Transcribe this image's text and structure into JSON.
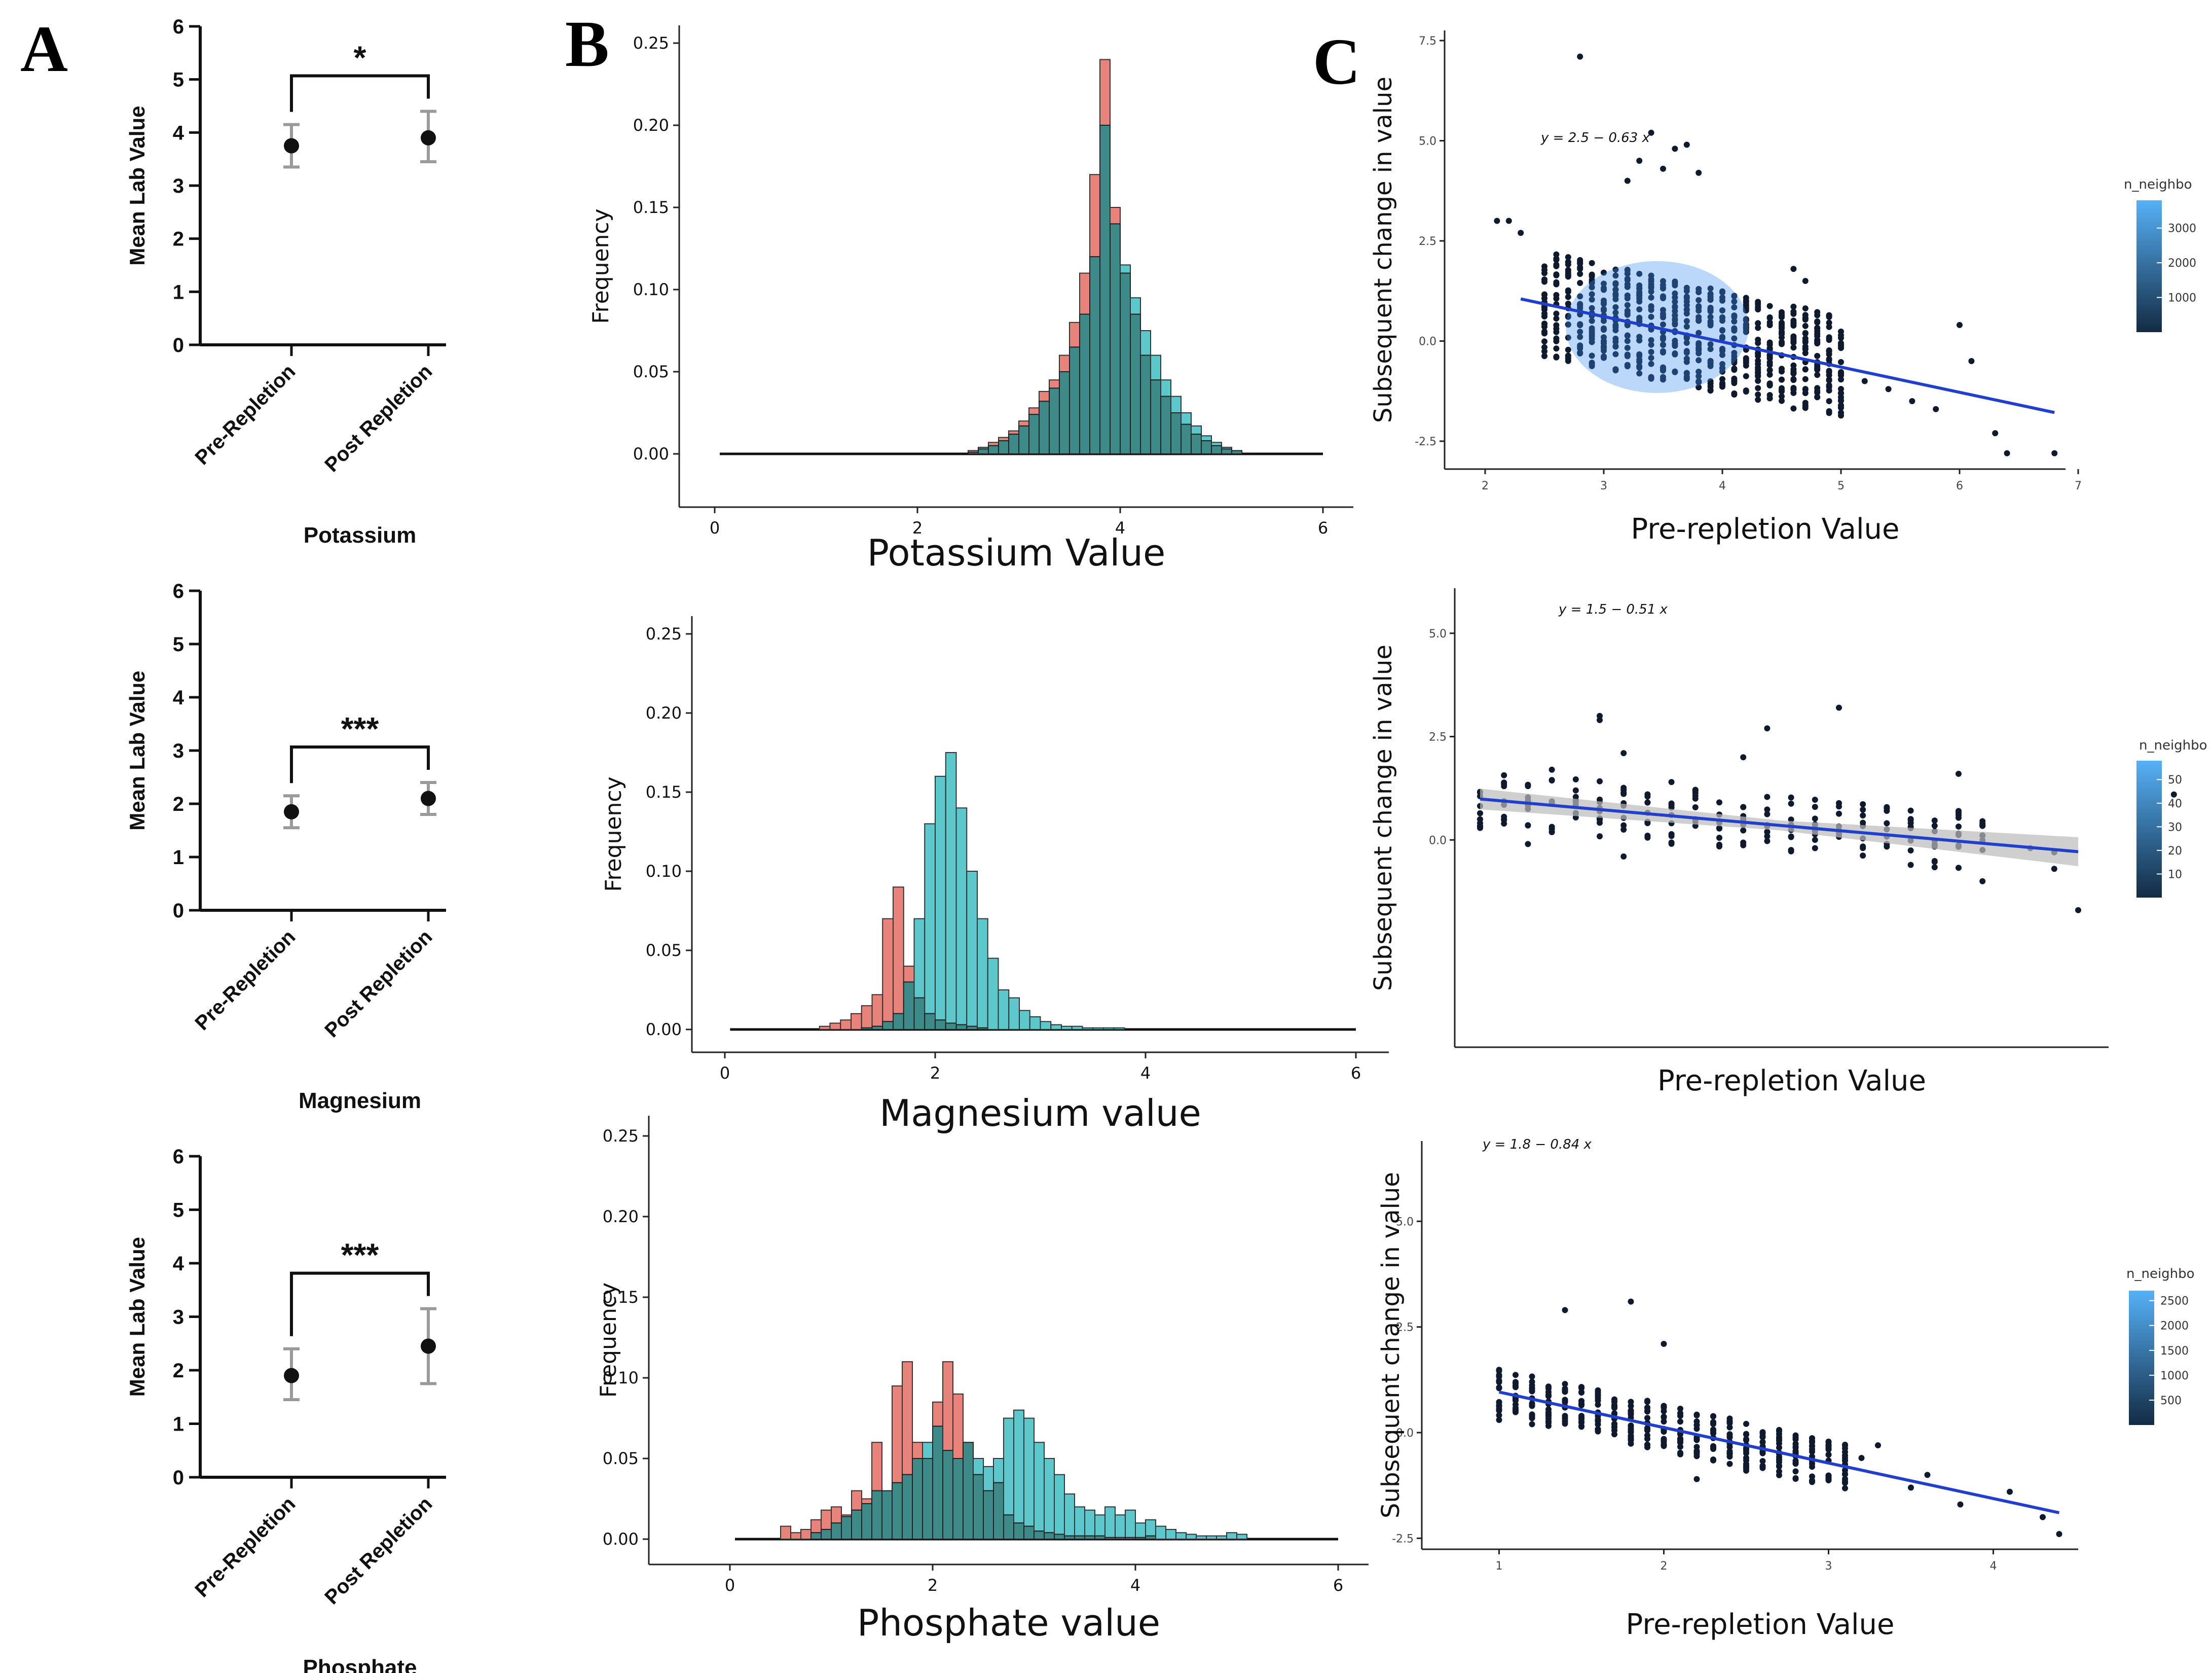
{
  "panel_labels": {
    "a": "A",
    "b": "B",
    "c": "C"
  },
  "colors": {
    "pre": "#E8837B",
    "post": "#5CC8CB",
    "overlap": "#3E8A88",
    "trend": "#1F3FCC",
    "ci": "#BBBBBB",
    "point": "#111111"
  },
  "chart_data": [
    {
      "id": "A1",
      "type": "scatter",
      "title": "Potassium",
      "ylabel": "Mean Lab Value",
      "ylim": [
        0,
        6
      ],
      "yticks": [
        0,
        1,
        2,
        3,
        4,
        5,
        6
      ],
      "categories": [
        "Pre-Repletion",
        "Post Repletion"
      ],
      "values": [
        3.75,
        3.9
      ],
      "err_low": [
        3.35,
        3.45
      ],
      "err_high": [
        4.15,
        4.4
      ],
      "significance": "*"
    },
    {
      "id": "A2",
      "type": "scatter",
      "title": "Magnesium",
      "ylabel": "Mean Lab Value",
      "ylim": [
        0,
        6
      ],
      "yticks": [
        0,
        1,
        2,
        3,
        4,
        5,
        6
      ],
      "categories": [
        "Pre-Repletion",
        "Post Repletion"
      ],
      "values": [
        1.85,
        2.1
      ],
      "err_low": [
        1.55,
        1.8
      ],
      "err_high": [
        2.15,
        2.4
      ],
      "significance": "***"
    },
    {
      "id": "A3",
      "type": "scatter",
      "title": "Phosphate",
      "ylabel": "Mean Lab Value",
      "ylim": [
        0,
        6
      ],
      "yticks": [
        0,
        1,
        2,
        3,
        4,
        5,
        6
      ],
      "categories": [
        "Pre-Repletion",
        "Post Repletion"
      ],
      "values": [
        1.9,
        2.45
      ],
      "err_low": [
        1.45,
        1.75
      ],
      "err_high": [
        2.4,
        3.15
      ],
      "significance": "***"
    },
    {
      "id": "B1",
      "type": "bar",
      "title": "Potassium Value",
      "ylabel": "Frequency",
      "xlim": [
        0,
        6
      ],
      "ylim": [
        0,
        0.25
      ],
      "xticks": [
        0,
        2,
        4,
        6
      ],
      "yticks": [
        "0.00",
        "0.05",
        "0.10",
        "0.15",
        "0.20",
        "0.25"
      ],
      "bin_width": 0.1,
      "series": [
        {
          "name": "pre",
          "start": 2.5,
          "values": [
            0.002,
            0.004,
            0.007,
            0.01,
            0.014,
            0.02,
            0.028,
            0.038,
            0.045,
            0.06,
            0.08,
            0.11,
            0.17,
            0.24,
            0.15,
            0.11,
            0.085,
            0.06,
            0.045,
            0.035,
            0.025,
            0.018,
            0.012,
            0.008,
            0.005,
            0.003,
            0.002
          ]
        },
        {
          "name": "post",
          "start": 2.5,
          "values": [
            0.001,
            0.003,
            0.005,
            0.008,
            0.012,
            0.017,
            0.024,
            0.032,
            0.04,
            0.05,
            0.065,
            0.085,
            0.12,
            0.2,
            0.14,
            0.115,
            0.095,
            0.075,
            0.06,
            0.045,
            0.035,
            0.025,
            0.017,
            0.011,
            0.007,
            0.004,
            0.002
          ]
        }
      ]
    },
    {
      "id": "B2",
      "type": "bar",
      "title": "Magnesium value",
      "ylabel": "Frequency",
      "xlim": [
        0,
        6
      ],
      "ylim": [
        0,
        0.25
      ],
      "xticks": [
        0,
        2,
        4,
        6
      ],
      "yticks": [
        "0.00",
        "0.05",
        "0.10",
        "0.15",
        "0.20",
        "0.25"
      ],
      "bin_width": 0.1,
      "series": [
        {
          "name": "pre",
          "start": 0.9,
          "values": [
            0.002,
            0.004,
            0.006,
            0.01,
            0.015,
            0.022,
            0.07,
            0.09,
            0.04,
            0.02,
            0.01,
            0.006,
            0.004,
            0.003,
            0.002,
            0.001
          ]
        },
        {
          "name": "post",
          "start": 1.3,
          "values": [
            0.001,
            0.002,
            0.005,
            0.01,
            0.03,
            0.07,
            0.13,
            0.16,
            0.175,
            0.14,
            0.1,
            0.07,
            0.045,
            0.025,
            0.02,
            0.012,
            0.008,
            0.005,
            0.003,
            0.002,
            0.002,
            0.001,
            0.001,
            0.001,
            0.001
          ]
        }
      ]
    },
    {
      "id": "B3",
      "type": "bar",
      "title": "Phosphate value",
      "ylabel": "Frequency",
      "xlim": [
        0,
        6
      ],
      "ylim": [
        0,
        0.25
      ],
      "xticks": [
        0,
        2,
        4,
        6
      ],
      "yticks": [
        "0.00",
        "0.05",
        "0.10",
        "0.15",
        "0.20",
        "0.25"
      ],
      "bin_width": 0.1,
      "series": [
        {
          "name": "pre",
          "start": 0.5,
          "values": [
            0.008,
            0.004,
            0.006,
            0.012,
            0.018,
            0.02,
            0.015,
            0.03,
            0.025,
            0.06,
            0.03,
            0.095,
            0.11,
            0.06,
            0.05,
            0.085,
            0.11,
            0.09,
            0.06,
            0.04,
            0.03,
            0.035,
            0.015,
            0.01,
            0.008,
            0.005,
            0.004,
            0.003,
            0.002,
            0.002,
            0.002,
            0.002,
            0.001,
            0.001,
            0.001,
            0.001,
            0.002
          ]
        },
        {
          "name": "post",
          "start": 0.8,
          "values": [
            0.004,
            0.006,
            0.01,
            0.014,
            0.018,
            0.022,
            0.03,
            0.03,
            0.035,
            0.04,
            0.05,
            0.06,
            0.07,
            0.055,
            0.05,
            0.06,
            0.05,
            0.045,
            0.05,
            0.075,
            0.08,
            0.075,
            0.06,
            0.05,
            0.04,
            0.028,
            0.02,
            0.018,
            0.015,
            0.02,
            0.015,
            0.018,
            0.01,
            0.012,
            0.008,
            0.006,
            0.004,
            0.003,
            0.002,
            0.002,
            0.002,
            0.004,
            0.003
          ]
        }
      ]
    },
    {
      "id": "C1",
      "type": "scatter",
      "xlabel": "Pre-repletion Value",
      "ylabel": "Subsequent change in value",
      "xlim": [
        2,
        7
      ],
      "ylim": [
        -2.5,
        7.5
      ],
      "xticks": [
        2,
        3,
        4,
        5,
        6,
        7
      ],
      "yticks": [
        "-2.5",
        "0.0",
        "2.5",
        "5.0",
        "7.5"
      ],
      "ytick_vals": [
        -2.5,
        0,
        2.5,
        5,
        7.5
      ],
      "equation": "y = 2.5 − 0.63 x",
      "intercept": 2.5,
      "slope": -0.63,
      "fit_x": [
        2.3,
        6.8
      ],
      "ci": false,
      "legend": {
        "title": "n_neighbo",
        "ticks": [
          "1000",
          "2000",
          "3000"
        ],
        "tick_vals": [
          1000,
          2000,
          3000
        ],
        "max": 3800
      },
      "outliers": [
        [
          2.1,
          3.0
        ],
        [
          2.2,
          3.0
        ],
        [
          2.3,
          2.7
        ],
        [
          2.8,
          7.1
        ],
        [
          3.2,
          4.0
        ],
        [
          3.3,
          4.5
        ],
        [
          3.4,
          5.2
        ],
        [
          3.5,
          4.3
        ],
        [
          3.6,
          4.8
        ],
        [
          3.7,
          4.9
        ],
        [
          3.8,
          4.2
        ],
        [
          4.6,
          1.8
        ],
        [
          4.7,
          1.5
        ],
        [
          5.2,
          -1.0
        ],
        [
          5.4,
          -1.2
        ],
        [
          5.6,
          -1.5
        ],
        [
          5.8,
          -1.7
        ],
        [
          6.0,
          0.4
        ],
        [
          6.1,
          -0.5
        ],
        [
          6.3,
          -2.3
        ],
        [
          6.4,
          -2.8
        ],
        [
          6.8,
          -2.8
        ]
      ]
    },
    {
      "id": "C2",
      "type": "scatter",
      "xlabel": "Pre-repletion Value",
      "ylabel": "Subsequent change in value",
      "xlim": [
        1,
        3.5
      ],
      "ylim": [
        -2.5,
        7.5
      ],
      "xticks": [],
      "yticks": [
        "0.0",
        "2.5",
        "5.0"
      ],
      "ytick_vals": [
        0,
        2.5,
        5
      ],
      "equation": "y = 1.5 − 0.51 x",
      "intercept": 1.5,
      "slope": -0.51,
      "fit_x": [
        1.0,
        3.5
      ],
      "ci": true,
      "legend": {
        "title": "n_neighbo",
        "ticks": [
          "10",
          "20",
          "30",
          "40",
          "50"
        ],
        "tick_vals": [
          10,
          20,
          30,
          40,
          50
        ],
        "max": 58
      },
      "outliers": [
        [
          1.0,
          0.5
        ],
        [
          1.1,
          1.3
        ],
        [
          1.3,
          1.7
        ],
        [
          1.5,
          2.9
        ],
        [
          1.5,
          3.0
        ],
        [
          1.6,
          2.1
        ],
        [
          1.8,
          1.4
        ],
        [
          1.9,
          1.2
        ],
        [
          2.1,
          2.0
        ],
        [
          2.2,
          2.7
        ],
        [
          2.5,
          3.2
        ],
        [
          3.0,
          0.7
        ],
        [
          3.1,
          -1.0
        ],
        [
          3.3,
          -0.2
        ],
        [
          3.4,
          -0.7
        ],
        [
          3.5,
          -1.7
        ],
        [
          3.4,
          -0.3
        ],
        [
          3.0,
          1.6
        ],
        [
          1.2,
          -0.1
        ],
        [
          1.6,
          -0.4
        ],
        [
          3.9,
          1.1
        ]
      ]
    },
    {
      "id": "C3",
      "type": "scatter",
      "xlabel": "Pre-repletion Value",
      "ylabel": "Subsequent change in value",
      "xlim": [
        0.9,
        4.5
      ],
      "ylim": [
        -2.7,
        7.5
      ],
      "xticks": [
        1,
        2,
        3,
        4
      ],
      "yticks": [
        "-2.5",
        "0.0",
        "2.5",
        "5.0"
      ],
      "ytick_vals": [
        -2.5,
        0,
        2.5,
        5
      ],
      "equation": "y = 1.8 − 0.84 x",
      "intercept": 1.8,
      "slope": -0.84,
      "fit_x": [
        1.0,
        4.4
      ],
      "ci": false,
      "legend": {
        "title": "n_neighbo",
        "ticks": [
          "500",
          "1000",
          "1500",
          "2000",
          "2500"
        ],
        "tick_vals": [
          500,
          1000,
          1500,
          2000,
          2500
        ],
        "max": 2700
      },
      "outliers": [
        [
          1.8,
          3.1
        ],
        [
          2.0,
          2.1
        ],
        [
          1.4,
          2.9
        ],
        [
          3.2,
          -0.6
        ],
        [
          3.3,
          -0.3
        ],
        [
          3.5,
          -1.3
        ],
        [
          3.6,
          -1.0
        ],
        [
          3.8,
          -1.7
        ],
        [
          4.1,
          -1.4
        ],
        [
          4.3,
          -2.0
        ],
        [
          4.4,
          -2.4
        ],
        [
          2.2,
          -1.1
        ],
        [
          2.5,
          -0.9
        ],
        [
          1.0,
          0.3
        ],
        [
          1.2,
          0.2
        ]
      ]
    }
  ]
}
